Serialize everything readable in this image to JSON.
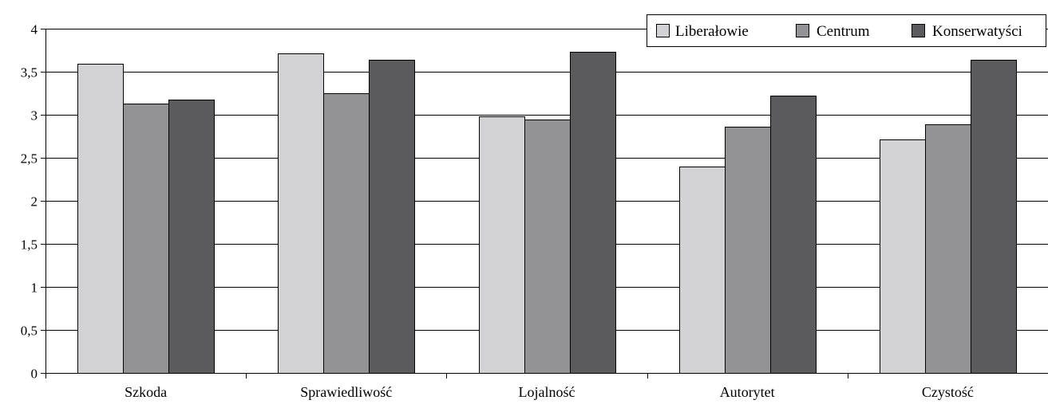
{
  "chart_data": {
    "type": "bar",
    "categories": [
      "Szkoda",
      "Sprawiedliwość",
      "Lojalność",
      "Autorytet",
      "Czystość"
    ],
    "series": [
      {
        "name": "Liberałowie",
        "color": "#d2d2d4",
        "values": [
          3.59,
          3.71,
          2.98,
          2.4,
          2.71
        ]
      },
      {
        "name": "Centrum",
        "color": "#939396",
        "values": [
          3.13,
          3.25,
          2.94,
          2.86,
          2.89
        ]
      },
      {
        "name": "Konserwatyści",
        "color": "#5b5b5e",
        "values": [
          3.18,
          3.64,
          3.73,
          3.22,
          3.64
        ]
      }
    ],
    "ylim": [
      0,
      4
    ],
    "yticks": [
      "0",
      "0,5",
      "1",
      "1,5",
      "2",
      "2,5",
      "3",
      "3,5",
      "4"
    ],
    "grid": true,
    "legend_position": "top-right"
  }
}
